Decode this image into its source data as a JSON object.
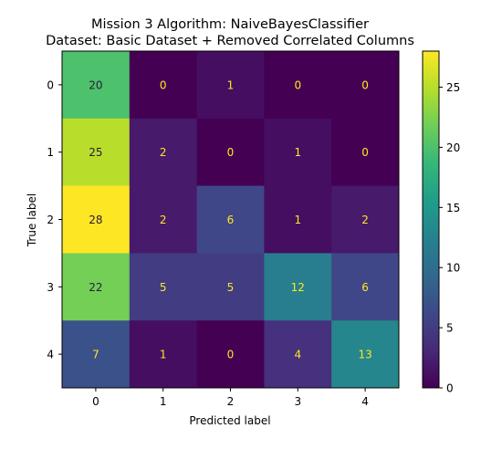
{
  "chart_data": {
    "type": "heatmap",
    "title_line1": "Mission 3 Algorithm: NaiveBayesClassifier",
    "title_line2": "Dataset: Basic Dataset + Removed Correlated Columns",
    "xlabel": "Predicted label",
    "ylabel": "True label",
    "x_categories": [
      "0",
      "1",
      "2",
      "3",
      "4"
    ],
    "y_categories": [
      "0",
      "1",
      "2",
      "3",
      "4"
    ],
    "matrix": [
      [
        20,
        0,
        1,
        0,
        0
      ],
      [
        25,
        2,
        0,
        1,
        0
      ],
      [
        28,
        2,
        6,
        1,
        2
      ],
      [
        22,
        5,
        5,
        12,
        6
      ],
      [
        7,
        1,
        0,
        4,
        13
      ]
    ],
    "colorbar": {
      "colormap": "viridis",
      "vmin": 0,
      "vmax": 28,
      "ticks": [
        "0",
        "5",
        "10",
        "15",
        "20",
        "25"
      ]
    }
  }
}
